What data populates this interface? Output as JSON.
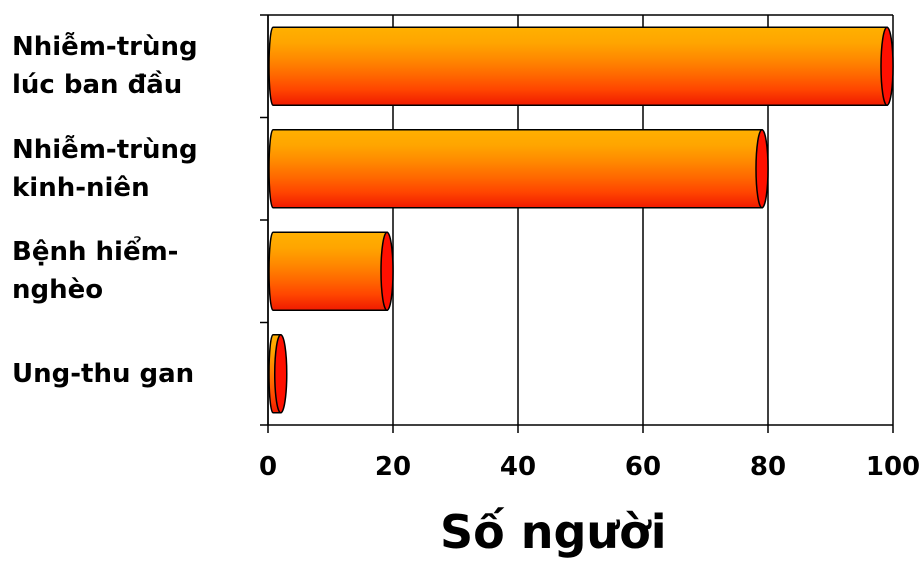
{
  "chart_data": {
    "type": "bar",
    "orientation": "horizontal",
    "categories": [
      "Nhiễm-trùng\nlúc ban đầu",
      "Nhiễm-trùng\nkinh-niên",
      "Bệnh hiểm-\nnghèo",
      "Ung-thu gan"
    ],
    "values": [
      100,
      80,
      20,
      3
    ],
    "xlabel": "Số người",
    "ylabel": "",
    "xlim": [
      0,
      100
    ],
    "xticks": [
      "0",
      "20",
      "40",
      "60",
      "80",
      "100"
    ],
    "grid": true,
    "legend": "none"
  },
  "colors": {
    "bar_light": "#ffa500",
    "bar_dark": "#f01a00",
    "bar_cap": "#ff1000",
    "grid": "#000000"
  }
}
